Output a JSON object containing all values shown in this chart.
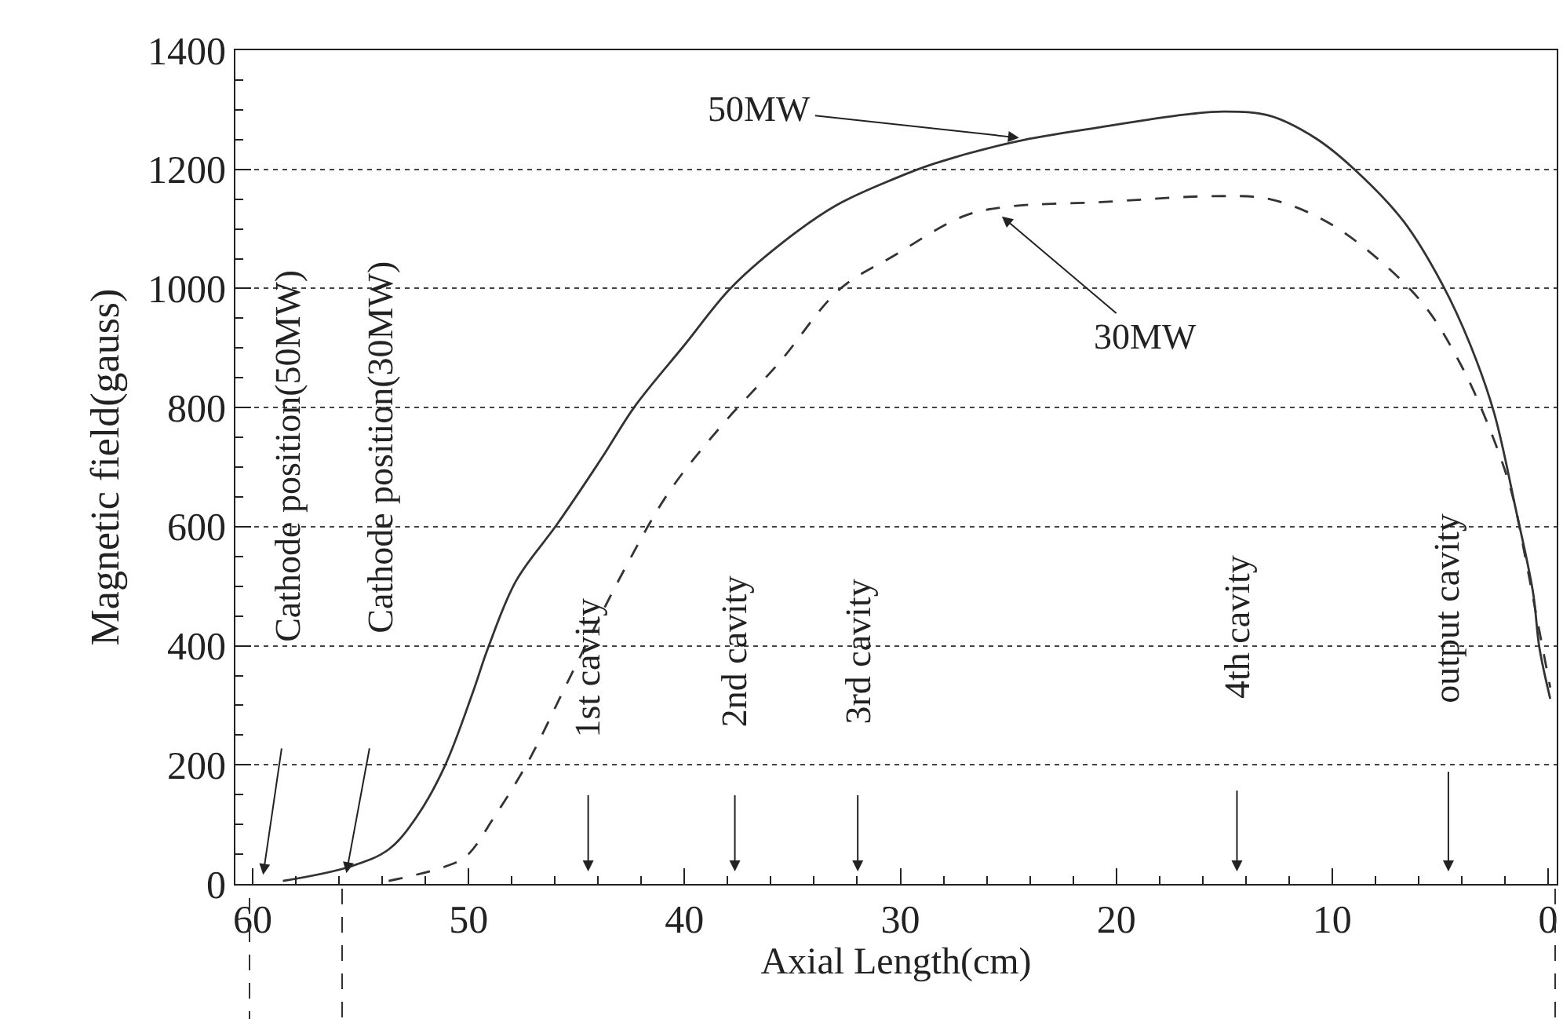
{
  "chart_data": {
    "type": "line",
    "xlabel": "Axial Length(cm)",
    "ylabel": "Magnetic field(gauss)",
    "xlim": [
      60.8,
      -0.4
    ],
    "xticks": [
      60,
      50,
      40,
      30,
      20,
      10,
      0
    ],
    "ylim": [
      0,
      1400
    ],
    "yticks": [
      0,
      200,
      400,
      600,
      800,
      1000,
      1200,
      1400
    ],
    "grid": "y",
    "marker": "none",
    "series": [
      {
        "color": "#333333",
        "line_style": "solid",
        "x": [
          58.6,
          55.5,
          53.7,
          52.4,
          51.1,
          49.8,
          49.1,
          47.8,
          45.9,
          43.8,
          42.3,
          40.0,
          37.9,
          35.6,
          33.0,
          30.3,
          28.4,
          24.6,
          20.7,
          16.8,
          15.0,
          12.9,
          10.8,
          9.0,
          6.7,
          4.9,
          3.6,
          2.5,
          1.5,
          0.7,
          0.4,
          -0.1
        ],
        "values": [
          5,
          29,
          58,
          113,
          198,
          322,
          396,
          509,
          604,
          717,
          802,
          905,
          999,
          1073,
          1139,
          1184,
          1210,
          1247,
          1271,
          1292,
          1297,
          1290,
          1253,
          1201,
          1113,
          1007,
          905,
          791,
          630,
          490,
          396,
          311
        ]
      },
      {
        "color": "#333333",
        "line_style": "dashed",
        "x": [
          53.7,
          51.1,
          50.1,
          48.8,
          47.2,
          45.4,
          42.8,
          40.7,
          38.2,
          35.6,
          32.8,
          30.3,
          27.1,
          25.1,
          20.7,
          15.5,
          12.9,
          10.3,
          7.8,
          5.7,
          4.1,
          2.8,
          1.7,
          1.0,
          0.5,
          -0.1
        ],
        "values": [
          5,
          29,
          47,
          113,
          208,
          340,
          527,
          659,
          773,
          876,
          999,
          1055,
          1121,
          1137,
          1145,
          1155,
          1150,
          1113,
          1047,
          970,
          876,
          773,
          659,
          538,
          443,
          330
        ]
      }
    ],
    "annotations": [
      {
        "text": "50MW",
        "x": 24.5,
        "y": 1253
      },
      {
        "text": "30MW",
        "x": 25.3,
        "y": 1121
      },
      "Cathode position(50MW)",
      "Cathode position(30MW)",
      "1st cavity",
      "2nd cavity",
      "3rd cavity",
      "4th cavity",
      "output cavity"
    ]
  }
}
